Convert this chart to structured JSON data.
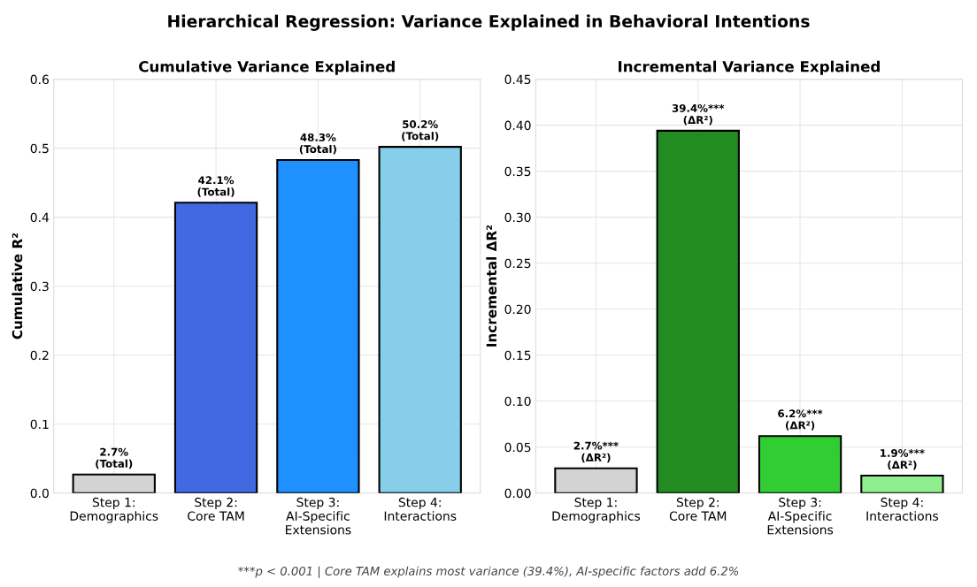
{
  "chart_data": [
    {
      "type": "bar",
      "title": "Cumulative Variance Explained",
      "ylabel": "Cumulative R²",
      "annotations": [
        "Hierarchical Regression: Variance Explained in Behavioral Intentions"
      ],
      "categories": [
        "Step 1:\nDemographics",
        "Step 2:\nCore TAM",
        "Step 3:\nAI-Specific\nExtensions",
        "Step 4:\nInteractions"
      ],
      "values": [
        0.027,
        0.421,
        0.483,
        0.502
      ],
      "colors": [
        "#d3d3d3",
        "#4169e1",
        "#1e90ff",
        "#87ceeb"
      ],
      "value_labels": [
        "2.7%\n(Total)",
        "42.1%\n(Total)",
        "48.3%\n(Total)",
        "50.2%\n(Total)"
      ],
      "ylim": [
        0,
        0.6
      ],
      "yticks": [
        {
          "value": 0,
          "label": "0.0"
        },
        {
          "value": 0.1,
          "label": "0.1"
        },
        {
          "value": 0.2,
          "label": "0.2"
        },
        {
          "value": 0.3,
          "label": "0.3"
        },
        {
          "value": 0.4,
          "label": "0.4"
        },
        {
          "value": 0.5,
          "label": "0.5"
        },
        {
          "value": 0.6,
          "label": "0.6"
        }
      ],
      "grid": true
    },
    {
      "type": "bar",
      "title": "Incremental Variance Explained",
      "ylabel": "Incremental ΔR²",
      "annotations": [
        "***p < 0.001 | Core TAM explains most variance (39.4%), AI-specific factors add 6.2%"
      ],
      "categories": [
        "Step 1:\nDemographics",
        "Step 2:\nCore TAM",
        "Step 3:\nAI-Specific\nExtensions",
        "Step 4:\nInteractions"
      ],
      "values": [
        0.027,
        0.394,
        0.062,
        0.019
      ],
      "colors": [
        "#d3d3d3",
        "#228b22",
        "#32cd32",
        "#90ee90"
      ],
      "value_labels": [
        "2.7%***\n(ΔR²)",
        "39.4%***\n(ΔR²)",
        "6.2%***\n(ΔR²)",
        "1.9%***\n(ΔR²)"
      ],
      "ylim": [
        0,
        0.45
      ],
      "yticks": [
        {
          "value": 0,
          "label": "0.00"
        },
        {
          "value": 0.05,
          "label": "0.05"
        },
        {
          "value": 0.1,
          "label": "0.10"
        },
        {
          "value": 0.15,
          "label": "0.15"
        },
        {
          "value": 0.2,
          "label": "0.20"
        },
        {
          "value": 0.25,
          "label": "0.25"
        },
        {
          "value": 0.3,
          "label": "0.30"
        },
        {
          "value": 0.35,
          "label": "0.35"
        },
        {
          "value": 0.4,
          "label": "0.40"
        },
        {
          "value": 0.45,
          "label": "0.45"
        }
      ],
      "grid": true
    }
  ]
}
